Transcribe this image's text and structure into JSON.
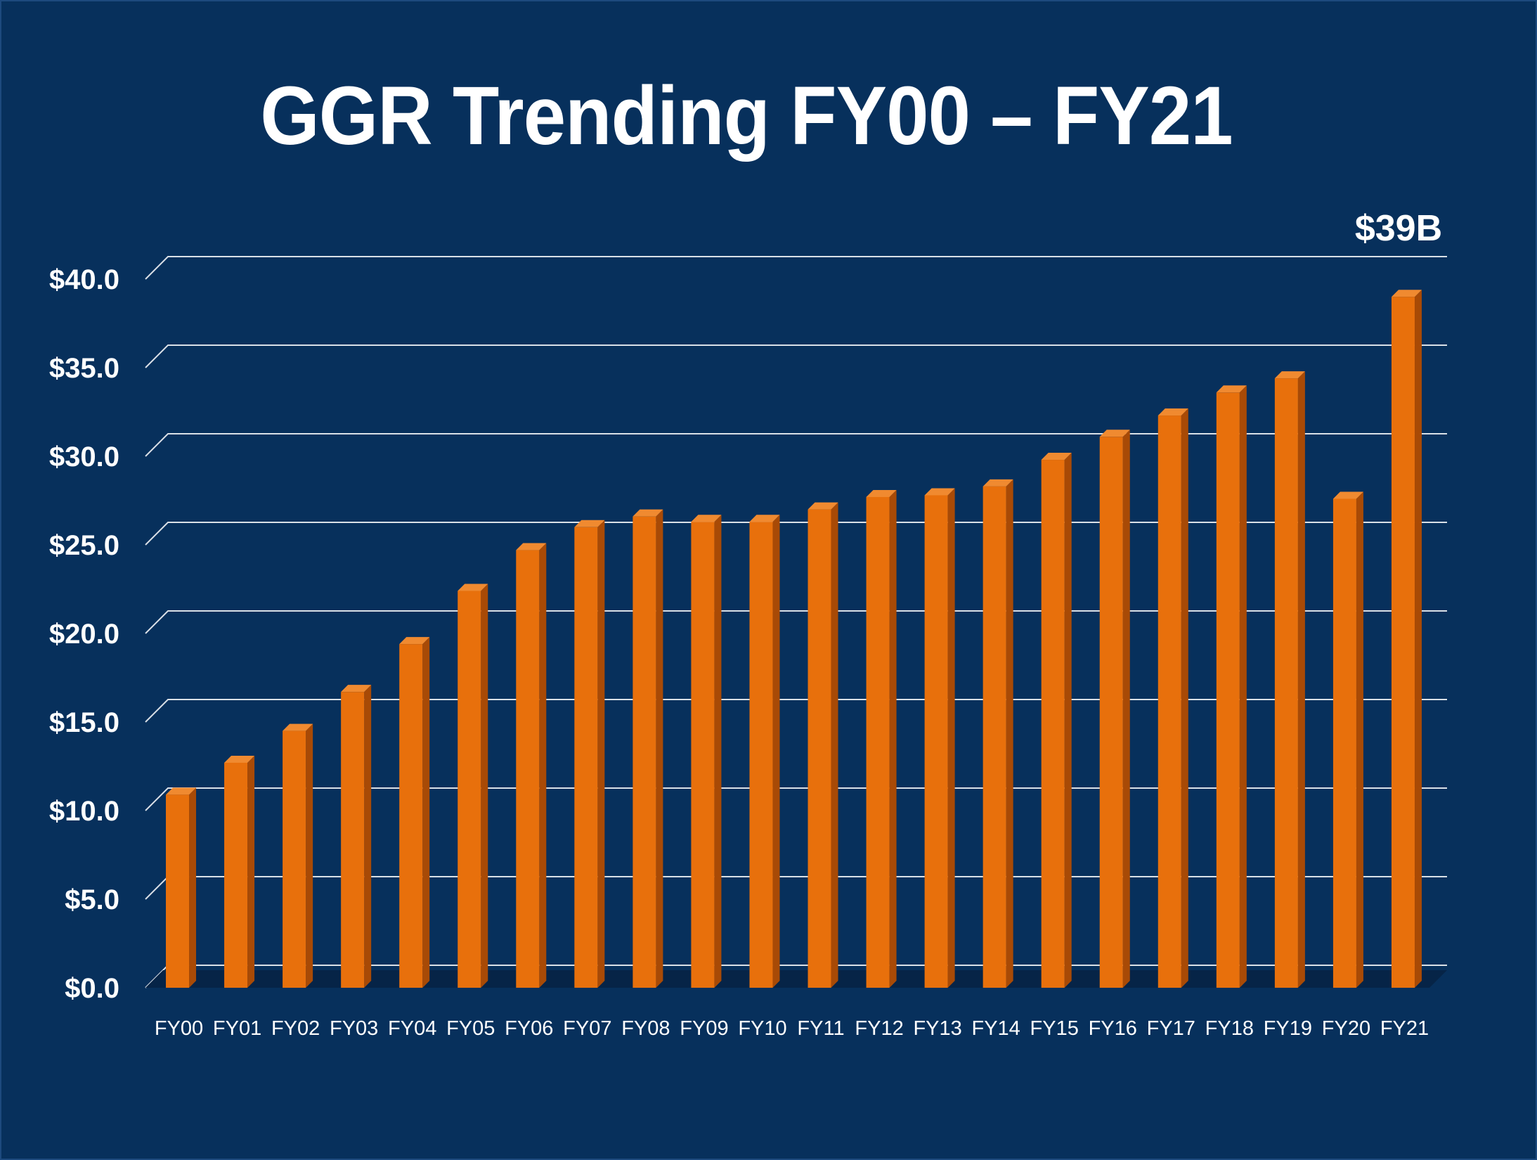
{
  "chart_data": {
    "type": "bar",
    "title": "GGR Trending FY00 – FY21",
    "xlabel": "",
    "ylabel": "",
    "categories": [
      "FY00",
      "FY01",
      "FY02",
      "FY03",
      "FY04",
      "FY05",
      "FY06",
      "FY07",
      "FY08",
      "FY09",
      "FY10",
      "FY11",
      "FY12",
      "FY13",
      "FY14",
      "FY15",
      "FY16",
      "FY17",
      "FY18",
      "FY19",
      "FY20",
      "FY21"
    ],
    "values": [
      10.9,
      12.7,
      14.5,
      16.7,
      19.4,
      22.4,
      24.7,
      26.0,
      26.6,
      26.3,
      26.3,
      27.0,
      27.7,
      27.8,
      28.3,
      29.8,
      31.1,
      32.3,
      33.6,
      34.4,
      27.6,
      39.0
    ],
    "ylim": [
      0,
      40
    ],
    "yticks": [
      "$0.0",
      "$5.0",
      "$10.0",
      "$15.0",
      "$20.0",
      "$25.0",
      "$30.0",
      "$35.0",
      "$40.0"
    ],
    "grid": true,
    "annotation": "$39B",
    "colors": {
      "background": "#07305c",
      "bar_front": "#e8700c",
      "bar_side": "#a84a06",
      "bar_top": "#f08a30",
      "grid": "#ffffff"
    }
  }
}
